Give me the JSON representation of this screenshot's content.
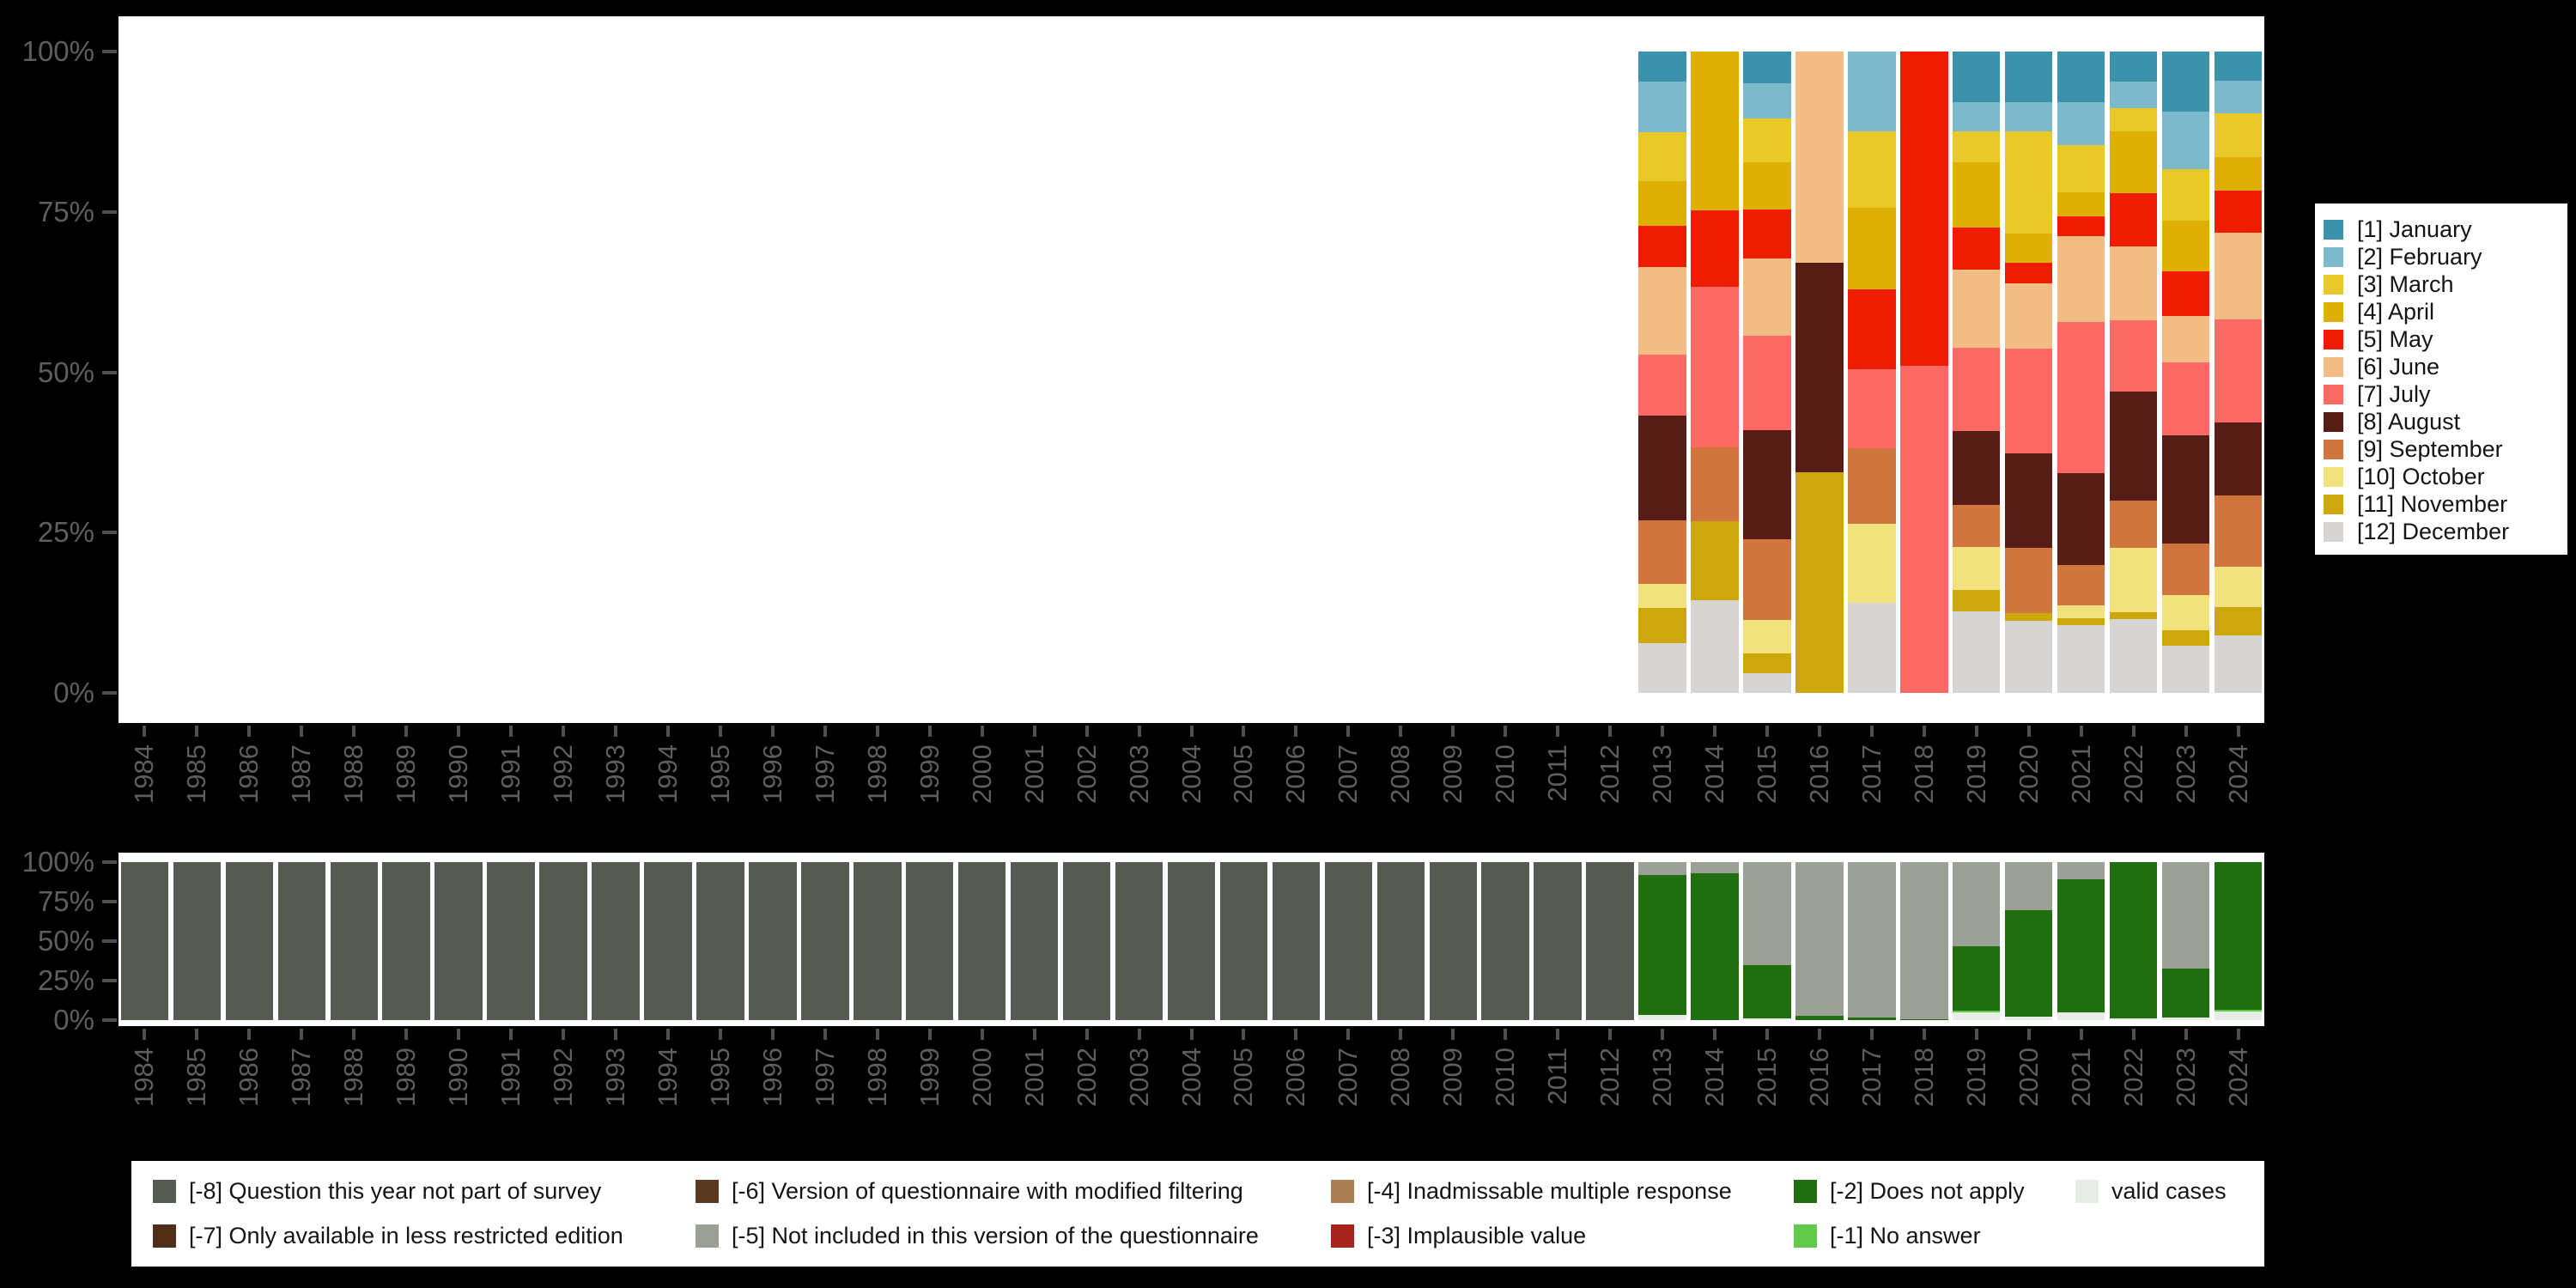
{
  "app": {
    "background_color": "#000000",
    "panel_color": "#ffffff",
    "axis_text_color": "#5e5e5e",
    "tick_color": "#4f4f4f"
  },
  "months_legend": {
    "items": [
      {
        "label": "[1] January",
        "color": "#3a92ab"
      },
      {
        "label": "[2] February",
        "color": "#7cb9cb"
      },
      {
        "label": "[3] March",
        "color": "#e9c929"
      },
      {
        "label": "[4] April",
        "color": "#dfb004"
      },
      {
        "label": "[5] May",
        "color": "#ee1c01"
      },
      {
        "label": "[6] June",
        "color": "#f1bd84"
      },
      {
        "label": "[7] July",
        "color": "#fd6a66"
      },
      {
        "label": "[8] August",
        "color": "#551d15"
      },
      {
        "label": "[9] September",
        "color": "#d0753d"
      },
      {
        "label": "[10] October",
        "color": "#f2e27e"
      },
      {
        "label": "[11] November",
        "color": "#cda80d"
      },
      {
        "label": "[12] December",
        "color": "#d6d5d3"
      }
    ]
  },
  "missing_legend": {
    "items": [
      {
        "label": "[-8] Question this year not part of survey",
        "color": "#555b52",
        "col": 0,
        "row": 0
      },
      {
        "label": "[-7] Only available in less restricted edition",
        "color": "#502e18",
        "col": 0,
        "row": 1
      },
      {
        "label": "[-6] Version of questionnaire with modified filtering",
        "color": "#5a3a20",
        "col": 1,
        "row": 0
      },
      {
        "label": "[-5] Not included in this version of the questionnaire",
        "color": "#9ba197",
        "col": 1,
        "row": 1
      },
      {
        "label": "[-4] Inadmissable multiple response",
        "color": "#a87e52",
        "col": 2,
        "row": 0
      },
      {
        "label": "[-3] Implausible value",
        "color": "#a6231b",
        "col": 2,
        "row": 1
      },
      {
        "label": "[-2] Does not apply",
        "color": "#206e10",
        "col": 3,
        "row": 0
      },
      {
        "label": "[-1] No answer",
        "color": "#62ca4a",
        "col": 3,
        "row": 1
      },
      {
        "label": "valid cases",
        "color": "#e8ece6",
        "col": 4,
        "row": 0
      }
    ]
  },
  "chart_data": [
    {
      "type": "bar",
      "stacked": true,
      "title": "",
      "xlabel": "",
      "ylabel": "",
      "ylim": [
        0,
        100
      ],
      "unit": "percent",
      "grid": false,
      "legend_position": "right",
      "ytick_labels": [
        "100%",
        "75%",
        "50%",
        "25%",
        "0%"
      ],
      "categories": [
        "1984",
        "1985",
        "1986",
        "1987",
        "1988",
        "1989",
        "1990",
        "1991",
        "1992",
        "1993",
        "1994",
        "1995",
        "1996",
        "1997",
        "1998",
        "1999",
        "2000",
        "2001",
        "2002",
        "2003",
        "2004",
        "2005",
        "2006",
        "2007",
        "2008",
        "2009",
        "2010",
        "2011",
        "2012",
        "2013",
        "2014",
        "2015",
        "2016",
        "2017",
        "2018",
        "2019",
        "2020",
        "2021",
        "2022",
        "2023",
        "2024"
      ],
      "series": [
        {
          "name": "[1] January",
          "color": "#3a92ab",
          "values": [
            0,
            0,
            0,
            0,
            0,
            0,
            0,
            0,
            0,
            0,
            0,
            0,
            0,
            0,
            0,
            0,
            0,
            0,
            0,
            0,
            0,
            0,
            0,
            0,
            0,
            0,
            0,
            0,
            0,
            4.7,
            0,
            4.9,
            0,
            0,
            0,
            7.9,
            7.9,
            7.9,
            4.7,
            9.4,
            4.5
          ]
        },
        {
          "name": "[2] February",
          "color": "#7cb9cb",
          "values": [
            0,
            0,
            0,
            0,
            0,
            0,
            0,
            0,
            0,
            0,
            0,
            0,
            0,
            0,
            0,
            0,
            0,
            0,
            0,
            0,
            0,
            0,
            0,
            0,
            0,
            0,
            0,
            0,
            0,
            7.9,
            0,
            5.6,
            0,
            12.4,
            0,
            4.5,
            4.5,
            6.7,
            4.2,
            8.9,
            5.2
          ]
        },
        {
          "name": "[3] March",
          "color": "#e9c929",
          "values": [
            0,
            0,
            0,
            0,
            0,
            0,
            0,
            0,
            0,
            0,
            0,
            0,
            0,
            0,
            0,
            0,
            0,
            0,
            0,
            0,
            0,
            0,
            0,
            0,
            0,
            0,
            0,
            0,
            0,
            7.6,
            0,
            6.8,
            0,
            12.0,
            0,
            4.9,
            16.0,
            7.3,
            3.5,
            8.1,
            6.7
          ]
        },
        {
          "name": "[4] April",
          "color": "#dfb004",
          "values": [
            0,
            0,
            0,
            0,
            0,
            0,
            0,
            0,
            0,
            0,
            0,
            0,
            0,
            0,
            0,
            0,
            0,
            0,
            0,
            0,
            0,
            0,
            0,
            0,
            0,
            0,
            0,
            0,
            0,
            7.0,
            24.7,
            7.4,
            0,
            12.7,
            0,
            10.2,
            4.6,
            3.8,
            9.7,
            7.9,
            5.3
          ]
        },
        {
          "name": "[5] May",
          "color": "#ee1c01",
          "values": [
            0,
            0,
            0,
            0,
            0,
            0,
            0,
            0,
            0,
            0,
            0,
            0,
            0,
            0,
            0,
            0,
            0,
            0,
            0,
            0,
            0,
            0,
            0,
            0,
            0,
            0,
            0,
            0,
            0,
            6.4,
            12.0,
            7.6,
            0,
            12.4,
            49.0,
            6.5,
            3.1,
            3.1,
            8.3,
            7.0,
            6.5
          ]
        },
        {
          "name": "[6] June",
          "color": "#f1bd84",
          "values": [
            0,
            0,
            0,
            0,
            0,
            0,
            0,
            0,
            0,
            0,
            0,
            0,
            0,
            0,
            0,
            0,
            0,
            0,
            0,
            0,
            0,
            0,
            0,
            0,
            0,
            0,
            0,
            0,
            0,
            13.6,
            0,
            12.0,
            32.9,
            0,
            0,
            12.2,
            10.2,
            13.4,
            11.5,
            7.2,
            13.6
          ]
        },
        {
          "name": "[7] July",
          "color": "#fd6a66",
          "values": [
            0,
            0,
            0,
            0,
            0,
            0,
            0,
            0,
            0,
            0,
            0,
            0,
            0,
            0,
            0,
            0,
            0,
            0,
            0,
            0,
            0,
            0,
            0,
            0,
            0,
            0,
            0,
            0,
            0,
            9.6,
            25.0,
            14.8,
            0,
            12.3,
            51.0,
            13.0,
            16.3,
            23.6,
            11.1,
            11.3,
            16.0
          ]
        },
        {
          "name": "[8] August",
          "color": "#551d15",
          "values": [
            0,
            0,
            0,
            0,
            0,
            0,
            0,
            0,
            0,
            0,
            0,
            0,
            0,
            0,
            0,
            0,
            0,
            0,
            0,
            0,
            0,
            0,
            0,
            0,
            0,
            0,
            0,
            0,
            0,
            16.3,
            0,
            17.0,
            32.7,
            0,
            0,
            11.5,
            14.8,
            14.3,
            17.0,
            16.9,
            11.4
          ]
        },
        {
          "name": "[9] September",
          "color": "#d0753d",
          "values": [
            0,
            0,
            0,
            0,
            0,
            0,
            0,
            0,
            0,
            0,
            0,
            0,
            0,
            0,
            0,
            0,
            0,
            0,
            0,
            0,
            0,
            0,
            0,
            0,
            0,
            0,
            0,
            0,
            0,
            9.9,
            11.5,
            12.5,
            0,
            11.8,
            0,
            6.6,
            10.2,
            6.3,
            7.4,
            8.1,
            11.1
          ]
        },
        {
          "name": "[10] October",
          "color": "#f2e27e",
          "values": [
            0,
            0,
            0,
            0,
            0,
            0,
            0,
            0,
            0,
            0,
            0,
            0,
            0,
            0,
            0,
            0,
            0,
            0,
            0,
            0,
            0,
            0,
            0,
            0,
            0,
            0,
            0,
            0,
            0,
            3.8,
            0,
            5.2,
            0,
            12.4,
            0,
            6.7,
            0,
            1.9,
            10.0,
            5.4,
            6.3
          ]
        },
        {
          "name": "[11] November",
          "color": "#cda80d",
          "values": [
            0,
            0,
            0,
            0,
            0,
            0,
            0,
            0,
            0,
            0,
            0,
            0,
            0,
            0,
            0,
            0,
            0,
            0,
            0,
            0,
            0,
            0,
            0,
            0,
            0,
            0,
            0,
            0,
            0,
            5.4,
            12.3,
            3.1,
            34.4,
            0,
            0,
            3.3,
            1.1,
            1.2,
            1.1,
            2.5,
            4.4
          ]
        },
        {
          "name": "[12] December",
          "color": "#d6d5d3",
          "values": [
            0,
            0,
            0,
            0,
            0,
            0,
            0,
            0,
            0,
            0,
            0,
            0,
            0,
            0,
            0,
            0,
            0,
            0,
            0,
            0,
            0,
            0,
            0,
            0,
            0,
            0,
            0,
            0,
            0,
            7.8,
            14.5,
            3.1,
            0,
            14.0,
            0,
            12.7,
            11.3,
            10.5,
            11.5,
            7.3,
            9.0
          ]
        }
      ]
    },
    {
      "type": "bar",
      "stacked": true,
      "title": "",
      "xlabel": "",
      "ylabel": "",
      "ylim": [
        0,
        100
      ],
      "unit": "percent",
      "grid": false,
      "legend_position": "bottom",
      "ytick_labels": [
        "100%",
        "75%",
        "50%",
        "25%",
        "0%"
      ],
      "categories": [
        "1984",
        "1985",
        "1986",
        "1987",
        "1988",
        "1989",
        "1990",
        "1991",
        "1992",
        "1993",
        "1994",
        "1995",
        "1996",
        "1997",
        "1998",
        "1999",
        "2000",
        "2001",
        "2002",
        "2003",
        "2004",
        "2005",
        "2006",
        "2007",
        "2008",
        "2009",
        "2010",
        "2011",
        "2012",
        "2013",
        "2014",
        "2015",
        "2016",
        "2017",
        "2018",
        "2019",
        "2020",
        "2021",
        "2022",
        "2023",
        "2024"
      ],
      "series": [
        {
          "name": "[-8] Question this year not part of survey",
          "color": "#555b52",
          "values": [
            100,
            100,
            100,
            100,
            100,
            100,
            100,
            100,
            100,
            100,
            100,
            100,
            100,
            100,
            100,
            100,
            100,
            100,
            100,
            100,
            100,
            100,
            100,
            100,
            100,
            100,
            100,
            100,
            100,
            0,
            0,
            0,
            0,
            0,
            0,
            0,
            0,
            0,
            0,
            0,
            0
          ]
        },
        {
          "name": "[-5] Not included in this version of the questionnaire",
          "color": "#9ba197",
          "values": [
            0,
            0,
            0,
            0,
            0,
            0,
            0,
            0,
            0,
            0,
            0,
            0,
            0,
            0,
            0,
            0,
            0,
            0,
            0,
            0,
            0,
            0,
            0,
            0,
            0,
            0,
            0,
            0,
            0,
            8.0,
            7.3,
            65.0,
            97.5,
            98.5,
            99.5,
            53.5,
            30.5,
            11.0,
            0,
            67.5,
            0
          ]
        },
        {
          "name": "[-2] Does not apply",
          "color": "#206e10",
          "values": [
            0,
            0,
            0,
            0,
            0,
            0,
            0,
            0,
            0,
            0,
            0,
            0,
            0,
            0,
            0,
            0,
            0,
            0,
            0,
            0,
            0,
            0,
            0,
            0,
            0,
            0,
            0,
            0,
            0,
            89.0,
            92.7,
            34.0,
            2.5,
            1.5,
            0.5,
            40.5,
            67.5,
            84.0,
            99.0,
            31.0,
            93.7
          ]
        },
        {
          "name": "[-1] No answer",
          "color": "#62ca4a",
          "values": [
            0,
            0,
            0,
            0,
            0,
            0,
            0,
            0,
            0,
            0,
            0,
            0,
            0,
            0,
            0,
            0,
            0,
            0,
            0,
            0,
            0,
            0,
            0,
            0,
            0,
            0,
            0,
            0,
            0,
            0,
            0,
            0,
            0,
            0,
            0,
            1.2,
            0,
            0,
            0,
            0,
            0.9
          ]
        },
        {
          "name": "valid cases",
          "color": "#e8ece6",
          "values": [
            0,
            0,
            0,
            0,
            0,
            0,
            0,
            0,
            0,
            0,
            0,
            0,
            0,
            0,
            0,
            0,
            0,
            0,
            0,
            0,
            0,
            0,
            0,
            0,
            0,
            0,
            0,
            0,
            0,
            3.0,
            0,
            1.0,
            0,
            0,
            0,
            4.8,
            2.0,
            5.0,
            1.0,
            1.5,
            5.4
          ]
        }
      ]
    }
  ]
}
